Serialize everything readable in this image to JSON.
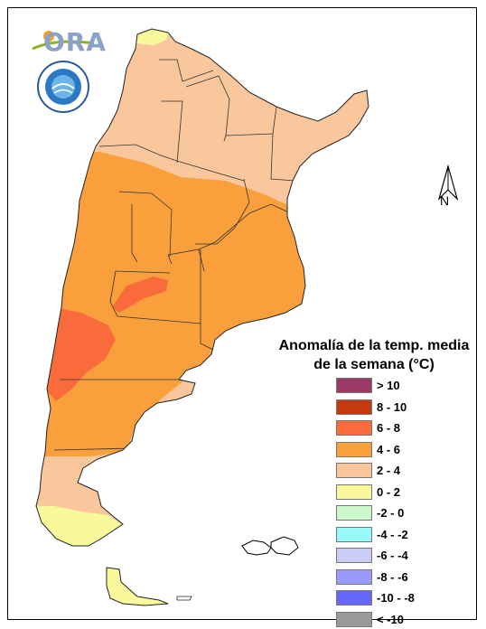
{
  "logo": {
    "text": "ORA",
    "seal_text": "SERVICIO METEOROLOGICO NACIONAL ARGENTINA"
  },
  "north_arrow": {
    "label": "N"
  },
  "legend": {
    "title_line1": "Anomalía de la temp. media",
    "title_line2": "de la semana (°C)",
    "items": [
      {
        "label": "> 10",
        "color": "#9b3a66"
      },
      {
        "label": "8 - 10",
        "color": "#c4390f"
      },
      {
        "label": "6 - 8",
        "color": "#f96b3a"
      },
      {
        "label": "4 - 6",
        "color": "#f9a03c"
      },
      {
        "label": "2 - 4",
        "color": "#f9c79b"
      },
      {
        "label": "0 - 2",
        "color": "#f9f99b"
      },
      {
        "label": "-2 - 0",
        "color": "#ccf9cc"
      },
      {
        "label": "-4 - -2",
        "color": "#99f9f9"
      },
      {
        "label": "-6 - -4",
        "color": "#ccccf9"
      },
      {
        "label": "-8 - -6",
        "color": "#9999f9"
      },
      {
        "label": "-10 - -8",
        "color": "#6666f9"
      },
      {
        "label": "< -10",
        "color": "#999999"
      }
    ]
  },
  "colors": {
    "zone_2_4": "#f9c79b",
    "zone_4_6": "#f9a03c",
    "zone_6_8": "#f96b3a",
    "zone_0_2": "#f9f99b",
    "boundary": "#333333"
  }
}
